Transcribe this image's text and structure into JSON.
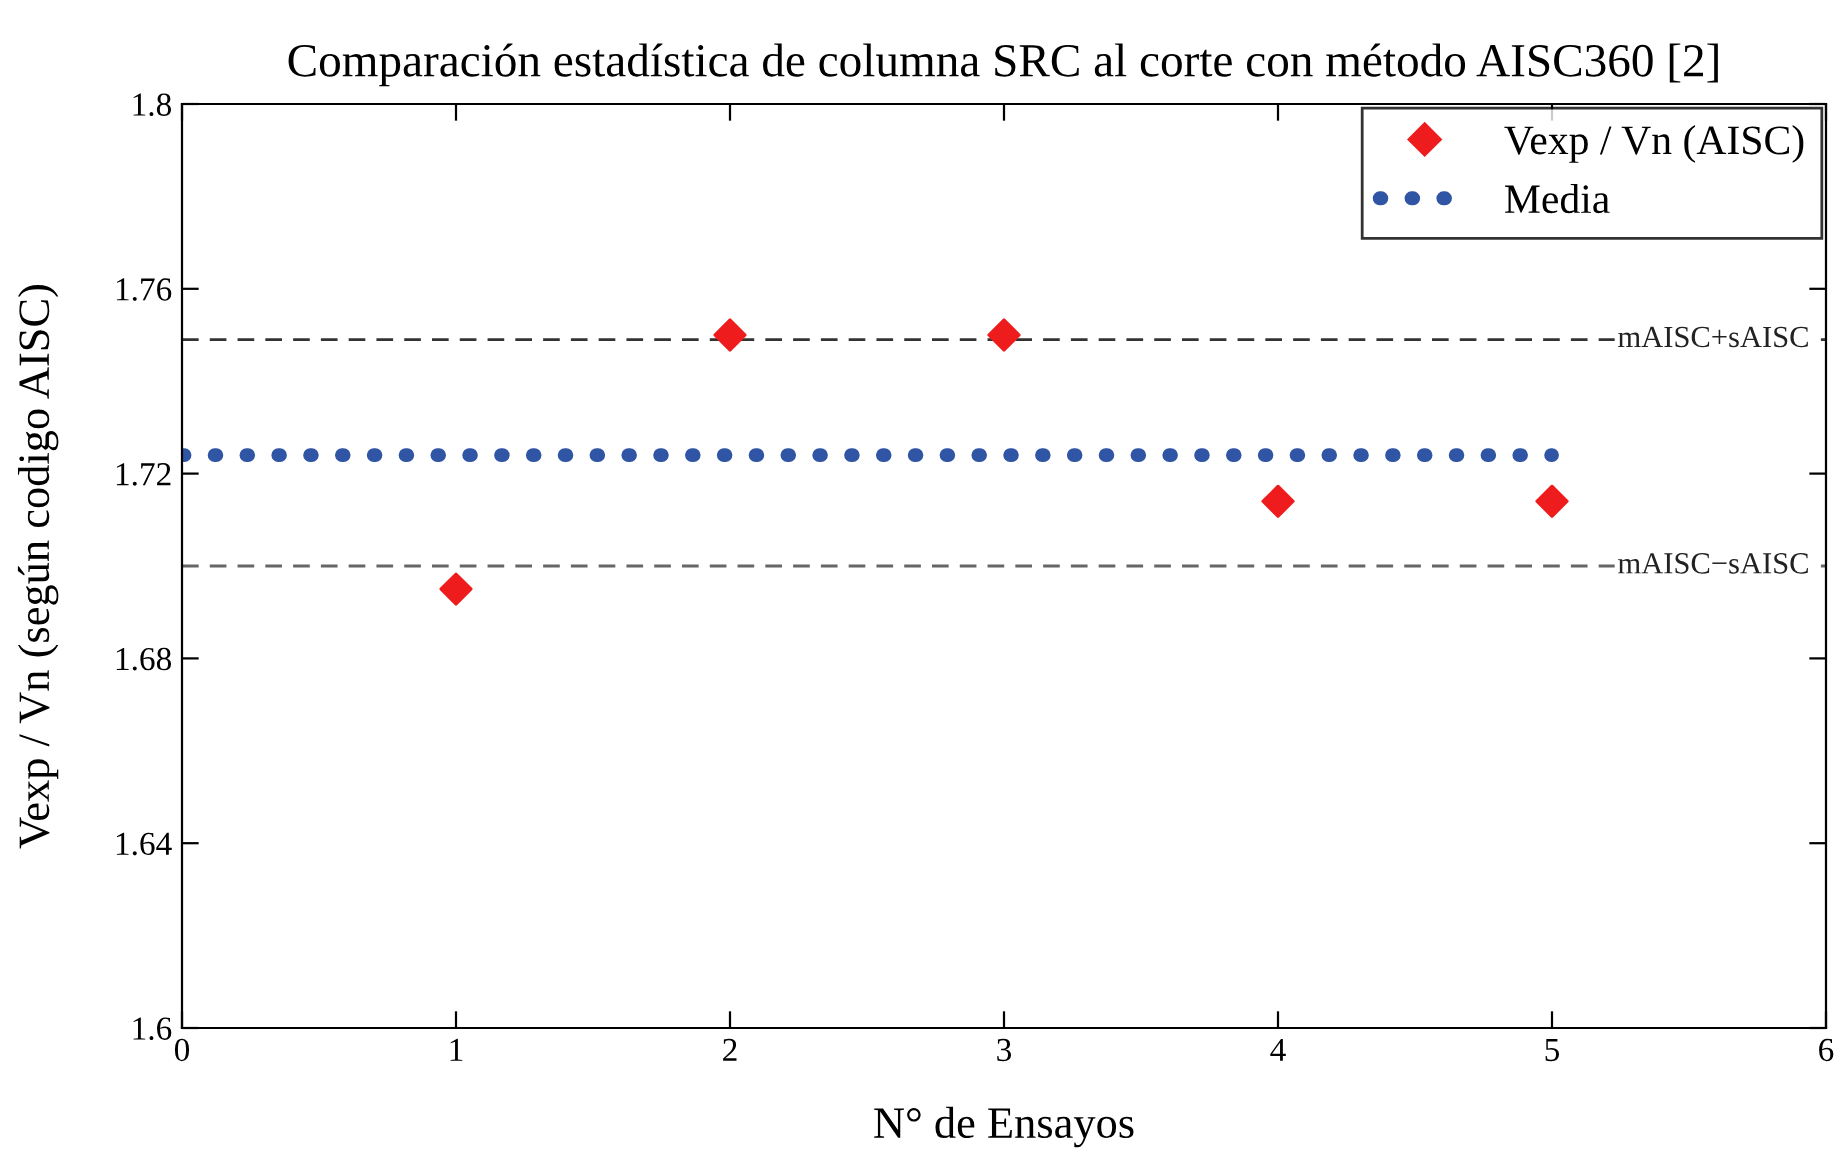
{
  "chart_data": {
    "type": "scatter",
    "title": "Comparación estadística de columna SRC al corte con método AISC360 [2]",
    "xlabel": "N° de Ensayos",
    "ylabel": "Vexp / Vn (según codigo AISC)",
    "series": [
      {
        "name": "Vexp / Vn (AISC)",
        "type": "scatter",
        "marker": "diamond",
        "color": "#ee1c1c",
        "x": [
          1,
          2,
          3,
          4,
          5
        ],
        "values": [
          1.695,
          1.75,
          1.75,
          1.714,
          1.714
        ]
      },
      {
        "name": "Media",
        "type": "line",
        "line_style": "dotted",
        "marker": "none",
        "color": "#2f55a4",
        "x": [
          0,
          5
        ],
        "values": [
          1.724,
          1.724
        ]
      }
    ],
    "ref_lines": [
      {
        "axis": "y",
        "value": 1.749,
        "label": "mAISC+sAISC",
        "color": "#333333",
        "line_style": "dashed"
      },
      {
        "axis": "y",
        "value": 1.7,
        "label": "mAISC−sAISC",
        "color": "#666666",
        "line_style": "dashed"
      }
    ],
    "xlim": [
      0,
      6
    ],
    "xticks": [
      0,
      1,
      2,
      3,
      4,
      5,
      6
    ],
    "ylim": [
      1.6,
      1.8
    ],
    "yticks": [
      1.6,
      1.64,
      1.68,
      1.72,
      1.76,
      1.8
    ],
    "grid": false,
    "legend": "top right"
  }
}
